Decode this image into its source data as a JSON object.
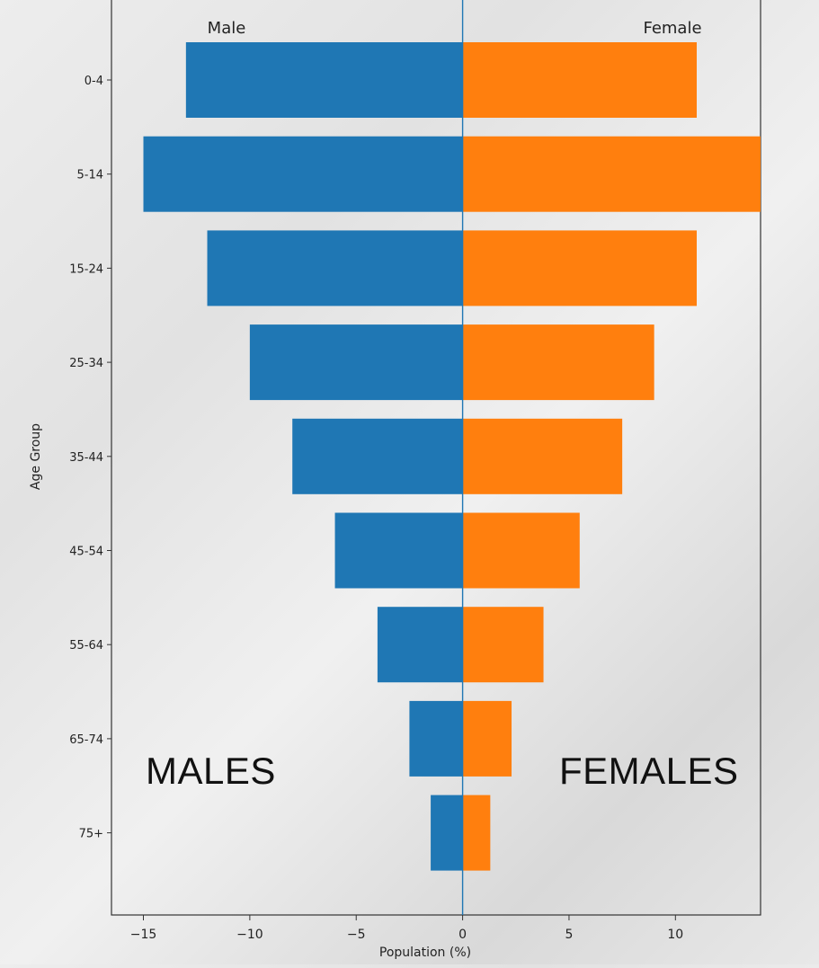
{
  "chart_data": {
    "type": "bar",
    "orientation": "horizontal",
    "categories": [
      "0-4",
      "5-14",
      "15-24",
      "25-34",
      "35-44",
      "45-54",
      "55-64",
      "65-74",
      "75+"
    ],
    "series": [
      {
        "name": "Male",
        "values": [
          -13,
          -15,
          -12,
          -10,
          -8,
          -6,
          -4,
          -2.5,
          -1.5
        ],
        "color": "#1f77b4"
      },
      {
        "name": "Female",
        "values": [
          11,
          14,
          11,
          9,
          7.5,
          5.5,
          3.8,
          2.3,
          1.3
        ],
        "color": "#ff7f0e"
      }
    ],
    "title": "",
    "xlabel": "Population (%)",
    "ylabel": "Age Group",
    "xlim": [
      -16.5,
      14
    ],
    "xticks": [
      -15,
      -10,
      -5,
      0,
      5,
      10
    ],
    "xtick_labels": [
      "−15",
      "−10",
      "−5",
      "0",
      "5",
      "10"
    ],
    "grid": false,
    "legend": "none",
    "annotations": [
      "Male",
      "Female"
    ]
  },
  "overlay": {
    "males": "MALES",
    "females": "FEMALES"
  }
}
